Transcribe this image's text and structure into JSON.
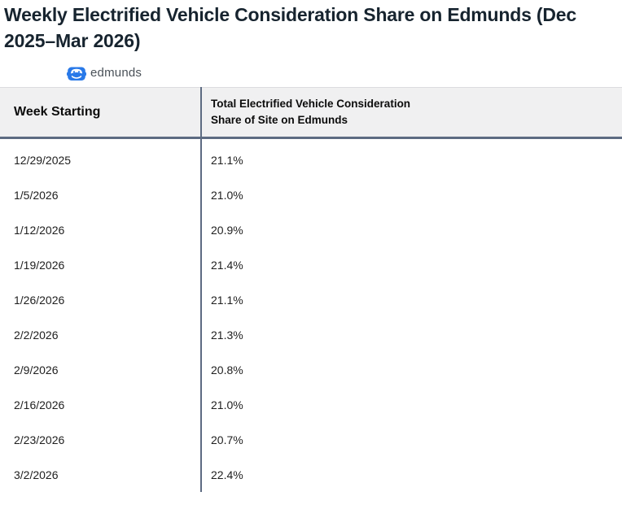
{
  "title": "Weekly Electrified Vehicle Consideration Share on Edmunds (Dec 2025–Mar 2026)",
  "logo": {
    "brand": "edmunds",
    "icon": "car-icon",
    "icon_color": "#2979e8",
    "text_color": "#4a5158"
  },
  "table": {
    "col1_header": "Week Starting",
    "col2_header_line1": "Total Electrified Vehicle Consideration",
    "col2_header_line2": "Share of Site on Edmunds",
    "rows": [
      {
        "week": "12/29/2025",
        "share": "21.1%"
      },
      {
        "week": "1/5/2026",
        "share": "21.0%"
      },
      {
        "week": "1/12/2026",
        "share": "20.9%"
      },
      {
        "week": "1/19/2026",
        "share": "21.4%"
      },
      {
        "week": "1/26/2026",
        "share": "21.1%"
      },
      {
        "week": "2/2/2026",
        "share": "21.3%"
      },
      {
        "week": "2/9/2026",
        "share": "20.8%"
      },
      {
        "week": "2/16/2026",
        "share": "21.0%"
      },
      {
        "week": "2/23/2026",
        "share": "20.7%"
      },
      {
        "week": "3/2/2026",
        "share": "22.4%"
      }
    ]
  },
  "colors": {
    "title_text": "#17242f",
    "header_bg": "#f0f0f1",
    "table_border": "#5d6b82",
    "row_text": "#1e1e1e"
  },
  "chart_data": {
    "type": "table",
    "title": "Weekly Electrified Vehicle Consideration Share on Edmunds (Dec 2025–Mar 2026)",
    "source_brand": "edmunds",
    "columns": [
      "Week Starting",
      "Total Electrified Vehicle Consideration Share of Site on Edmunds"
    ],
    "x": [
      "12/29/2025",
      "1/5/2026",
      "1/12/2026",
      "1/19/2026",
      "1/26/2026",
      "2/2/2026",
      "2/9/2026",
      "2/16/2026",
      "2/23/2026",
      "3/2/2026"
    ],
    "values": [
      21.1,
      21.0,
      20.9,
      21.4,
      21.1,
      21.3,
      20.8,
      21.0,
      20.7,
      22.4
    ],
    "value_unit": "%",
    "legend_position": "none",
    "grid": false
  }
}
